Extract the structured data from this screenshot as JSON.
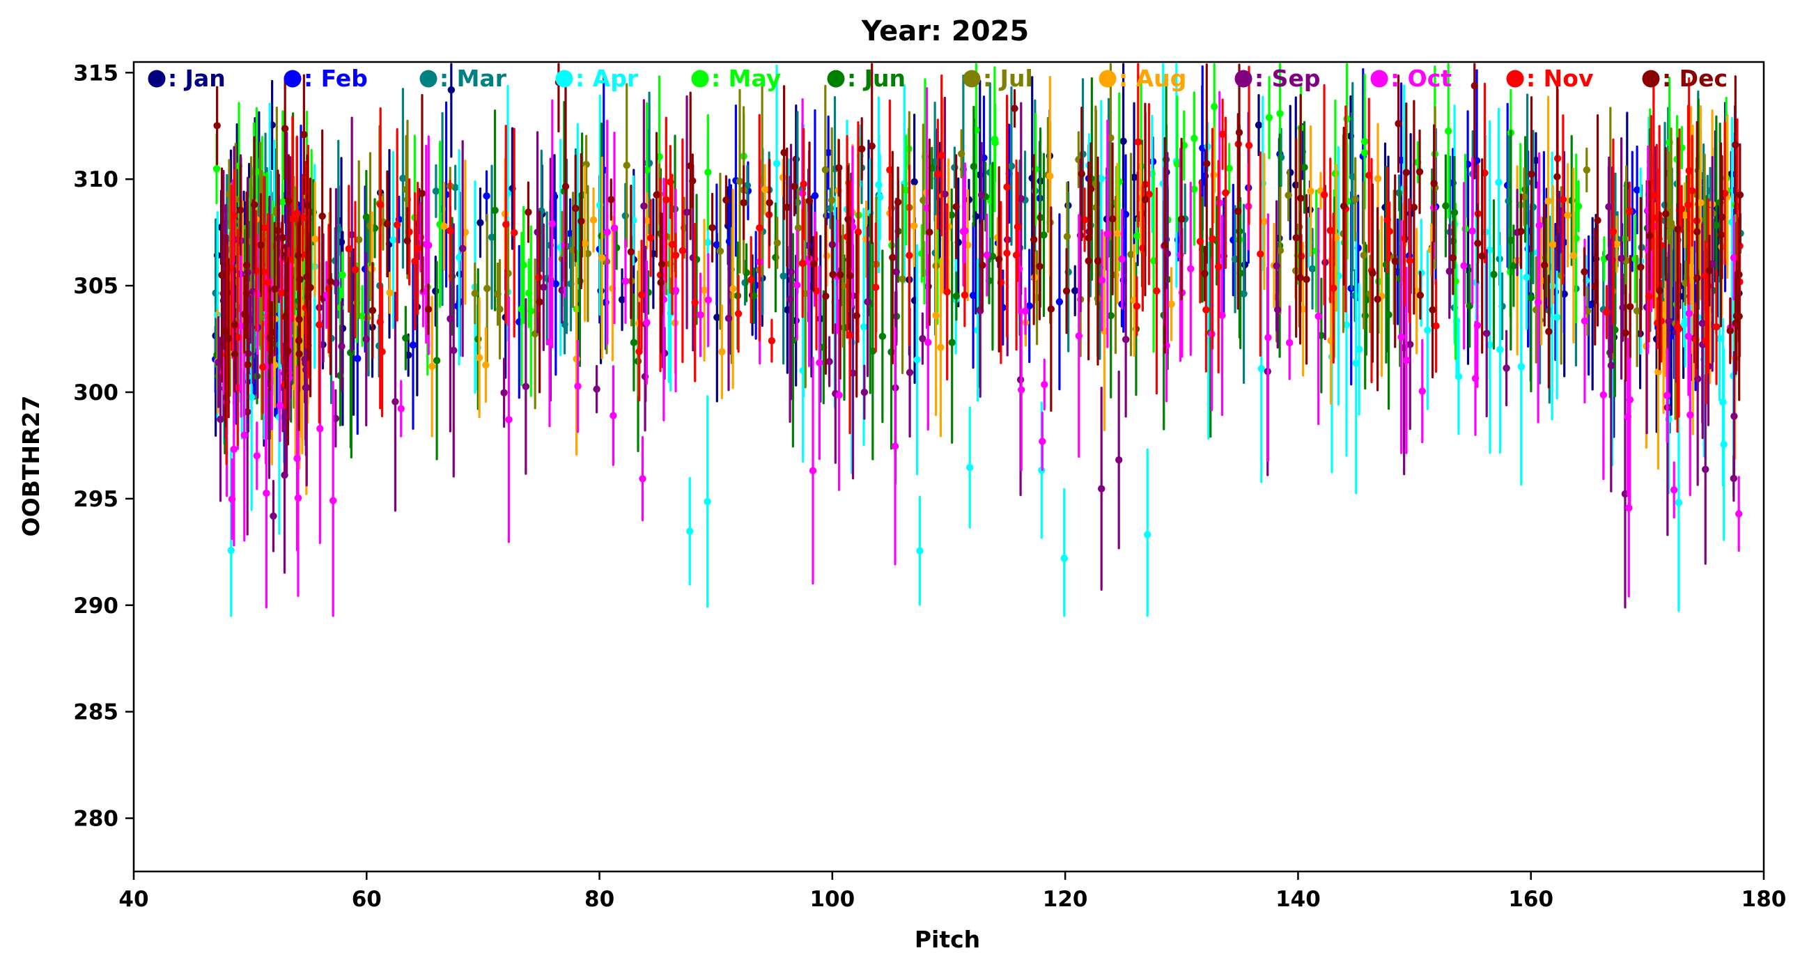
{
  "chart_data": {
    "type": "scatter",
    "title": "Year: 2025",
    "xlabel": "Pitch",
    "ylabel": "OOBTHR27",
    "xlim": [
      40,
      180
    ],
    "ylim": [
      277.5,
      315.5
    ],
    "xticks": [
      40,
      60,
      80,
      100,
      120,
      140,
      160,
      180
    ],
    "yticks": [
      280,
      285,
      290,
      295,
      300,
      305,
      310,
      315
    ],
    "grid": false,
    "legend_position": "top",
    "legend_prefix": ": ",
    "series": [
      {
        "name": "Jan",
        "color": "#000080"
      },
      {
        "name": "Feb",
        "color": "#0000ff"
      },
      {
        "name": "Mar",
        "color": "#008080"
      },
      {
        "name": "Apr",
        "color": "#00ffff"
      },
      {
        "name": "May",
        "color": "#00ff00"
      },
      {
        "name": "Jun",
        "color": "#008000"
      },
      {
        "name": "Jul",
        "color": "#808000"
      },
      {
        "name": "Aug",
        "color": "#ffa500"
      },
      {
        "name": "Sep",
        "color": "#800080"
      },
      {
        "name": "Oct",
        "color": "#ff00ff"
      },
      {
        "name": "Nov",
        "color": "#ff0000"
      },
      {
        "name": "Dec",
        "color": "#8b0000"
      }
    ],
    "notes": "Dense monthly error-bar clouds. Points are sampled from visible clusters: mostly 300-312, with outliers down to ~291.9 and up to ~315."
  }
}
